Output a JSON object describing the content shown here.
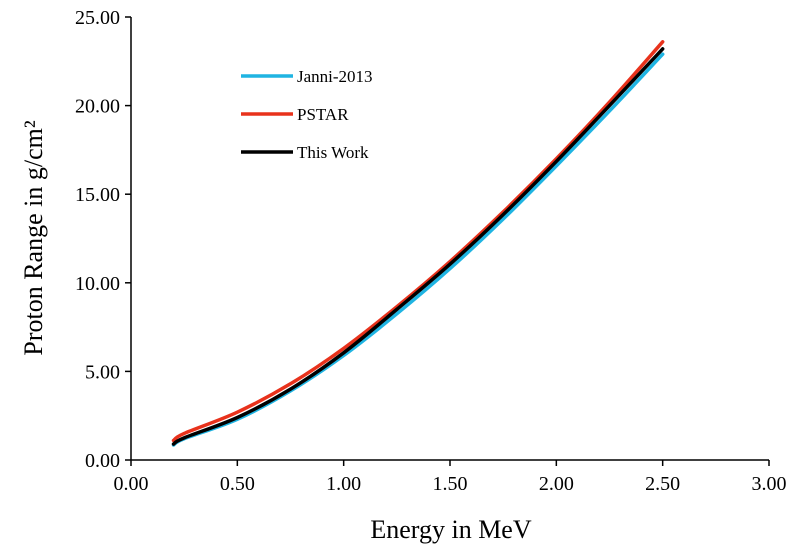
{
  "chart_data": {
    "type": "line",
    "xlabel": "Energy in MeV",
    "ylabel": "Proton Range in g/cm²",
    "xlim": [
      0,
      3
    ],
    "ylim": [
      0,
      25
    ],
    "x_ticks": [
      "0.00",
      "0.50",
      "1.00",
      "1.50",
      "2.00",
      "2.50",
      "3.00"
    ],
    "y_ticks": [
      "0.00",
      "5.00",
      "10.00",
      "15.00",
      "20.00",
      "25.00"
    ],
    "grid": false,
    "legend_position": "top-left",
    "series": [
      {
        "name": "Janni-2013",
        "color": "#1fb4e2",
        "x": [
          0.2,
          0.25,
          0.5,
          0.75,
          1.0,
          1.25,
          1.5,
          1.75,
          2.0,
          2.25,
          2.5
        ],
        "y": [
          0.85,
          1.2,
          2.3,
          3.9,
          5.9,
          8.25,
          10.8,
          13.6,
          16.6,
          19.7,
          22.9
        ]
      },
      {
        "name": "PSTAR",
        "color": "#e8321c",
        "x": [
          0.2,
          0.25,
          0.5,
          0.75,
          1.0,
          1.25,
          1.5,
          1.75,
          2.0,
          2.25,
          2.5
        ],
        "y": [
          1.1,
          1.5,
          2.7,
          4.3,
          6.3,
          8.65,
          11.2,
          14.0,
          17.0,
          20.2,
          23.6
        ]
      },
      {
        "name": "This Work",
        "color": "#000000",
        "x": [
          0.2,
          0.25,
          0.5,
          0.75,
          1.0,
          1.25,
          1.5,
          1.75,
          2.0,
          2.25,
          2.5
        ],
        "y": [
          0.9,
          1.25,
          2.4,
          4.0,
          6.05,
          8.5,
          11.05,
          13.85,
          16.85,
          20.0,
          23.2
        ]
      }
    ]
  }
}
